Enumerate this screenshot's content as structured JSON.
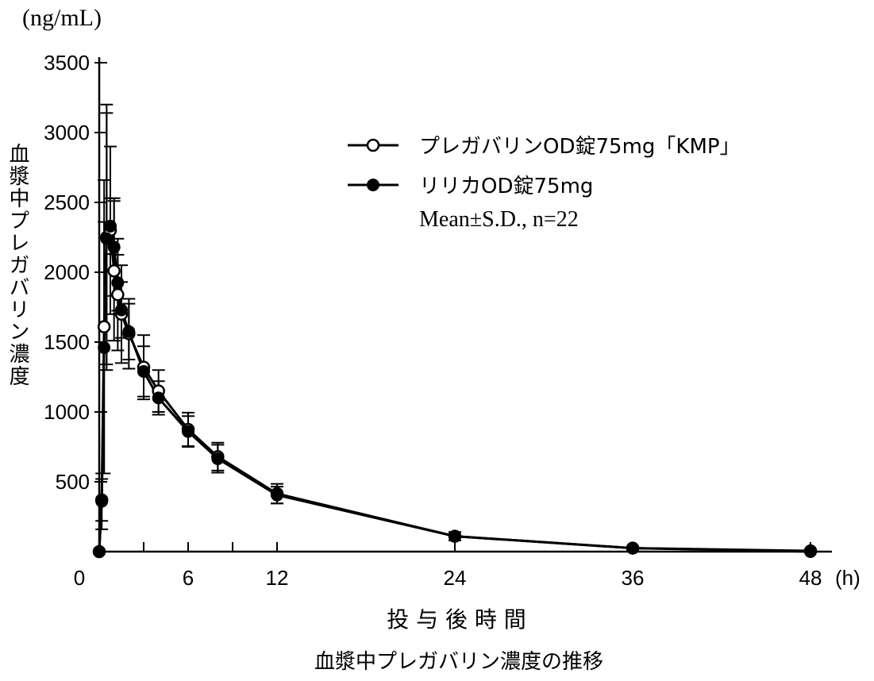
{
  "chart_data": {
    "type": "line",
    "title": "血漿中プレガバリン濃度の推移",
    "xlabel": "投 与 後 時 間",
    "xunit": "(h)",
    "ylabel": "血漿中プレガバリン濃度",
    "yunit": "(ng/mL)",
    "xlim": [
      0,
      48
    ],
    "ylim": [
      0,
      3500
    ],
    "xticks": [
      0,
      6,
      12,
      24,
      36,
      48
    ],
    "yticks": [
      500,
      1000,
      1500,
      2000,
      2500,
      3000,
      3500
    ],
    "grid": false,
    "legend_position": "top-right",
    "legend_note": "Mean±S.D., n=22",
    "x": [
      0,
      0.17,
      0.33,
      0.5,
      0.75,
      1,
      1.25,
      1.5,
      2,
      3,
      4,
      6,
      8,
      12,
      24,
      36,
      48
    ],
    "series": [
      {
        "name": "プレガバリンOD錠75mg「KMP」",
        "marker": "open-circle",
        "values": [
          0,
          370,
          1610,
          2250,
          2300,
          2010,
          1840,
          1700,
          1560,
          1320,
          1150,
          875,
          680,
          415,
          110,
          25,
          5
        ],
        "sd": [
          0,
          150,
          1050,
          950,
          600,
          500,
          400,
          350,
          250,
          230,
          150,
          120,
          100,
          70,
          30,
          10,
          5
        ]
      },
      {
        "name": "リリカOD錠75mg",
        "marker": "filled-circle",
        "values": [
          0,
          360,
          1460,
          2240,
          2330,
          2180,
          1925,
          1730,
          1575,
          1290,
          1100,
          860,
          665,
          405,
          110,
          25,
          0
        ],
        "sd": [
          0,
          200,
          900,
          900,
          200,
          350,
          200,
          200,
          200,
          180,
          120,
          110,
          100,
          60,
          30,
          10,
          5
        ]
      }
    ]
  }
}
